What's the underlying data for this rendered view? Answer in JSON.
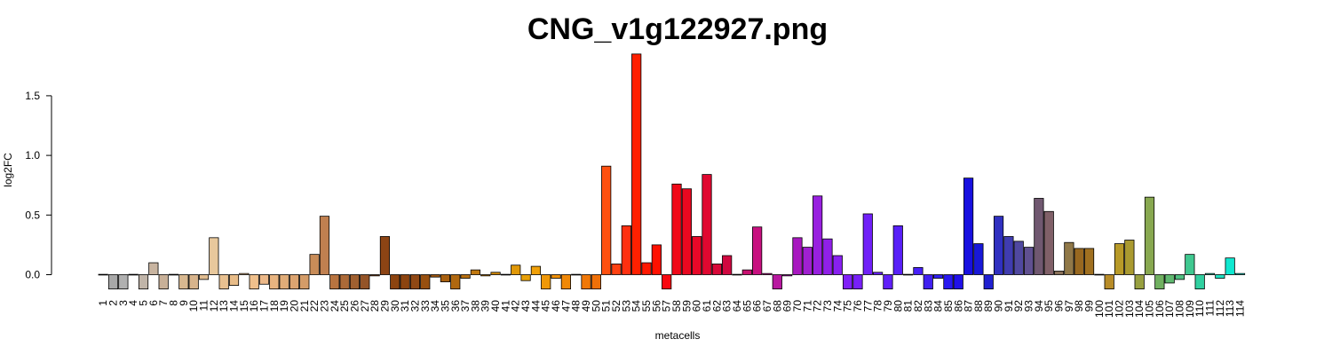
{
  "chart_data": {
    "type": "bar",
    "title": "CNG_v1g122927.png",
    "xlabel": "metacells",
    "ylabel": "log2FC",
    "ylim": [
      -0.13,
      1.9
    ],
    "yticks": [
      0.0,
      0.5,
      1.0,
      1.5
    ],
    "ytick_labels": [
      "0.0",
      "0.5",
      "1.0",
      "1.5"
    ],
    "categories": [
      "1",
      "2",
      "3",
      "4",
      "5",
      "6",
      "7",
      "8",
      "9",
      "10",
      "11",
      "12",
      "13",
      "14",
      "15",
      "16",
      "17",
      "18",
      "19",
      "20",
      "21",
      "22",
      "23",
      "24",
      "25",
      "26",
      "27",
      "28",
      "29",
      "30",
      "31",
      "32",
      "33",
      "34",
      "35",
      "36",
      "37",
      "38",
      "39",
      "40",
      "41",
      "42",
      "43",
      "44",
      "45",
      "46",
      "47",
      "48",
      "49",
      "50",
      "51",
      "52",
      "53",
      "54",
      "55",
      "56",
      "57",
      "58",
      "59",
      "60",
      "61",
      "62",
      "63",
      "64",
      "65",
      "66",
      "67",
      "68",
      "69",
      "70",
      "71",
      "72",
      "73",
      "74",
      "75",
      "76",
      "77",
      "78",
      "79",
      "80",
      "81",
      "82",
      "83",
      "84",
      "85",
      "86",
      "87",
      "88",
      "89",
      "90",
      "91",
      "92",
      "93",
      "94",
      "95",
      "96",
      "97",
      "98",
      "99",
      "100",
      "101",
      "102",
      "103",
      "104",
      "105",
      "106",
      "107",
      "108",
      "109",
      "110",
      "111",
      "112",
      "113",
      "114"
    ],
    "values": [
      0.0,
      -0.12,
      -0.12,
      0.0,
      -0.12,
      0.1,
      -0.12,
      0.0,
      -0.12,
      -0.12,
      -0.04,
      0.31,
      -0.12,
      -0.09,
      0.01,
      -0.12,
      -0.08,
      -0.12,
      -0.12,
      -0.12,
      -0.12,
      0.17,
      0.49,
      -0.12,
      -0.12,
      -0.12,
      -0.12,
      -0.01,
      0.32,
      -0.12,
      -0.12,
      -0.12,
      -0.12,
      -0.02,
      -0.06,
      -0.12,
      -0.03,
      0.04,
      -0.01,
      0.02,
      0.0,
      0.08,
      -0.05,
      0.07,
      -0.12,
      -0.03,
      -0.12,
      0.0,
      -0.12,
      -0.12,
      0.91,
      0.09,
      0.41,
      1.85,
      0.1,
      0.25,
      -0.12,
      0.76,
      0.72,
      0.32,
      0.84,
      0.09,
      0.16,
      0.0,
      0.04,
      0.4,
      0.01,
      -0.12,
      -0.01,
      0.31,
      0.23,
      0.66,
      0.3,
      0.16,
      -0.12,
      -0.12,
      0.51,
      0.02,
      -0.12,
      0.41,
      0.0,
      0.06,
      -0.12,
      -0.03,
      -0.12,
      -0.12,
      0.81,
      0.26,
      -0.12,
      0.49,
      0.32,
      0.28,
      0.23,
      0.64,
      0.53,
      0.03,
      0.27,
      0.22,
      0.22,
      0.0,
      -0.12,
      0.26,
      0.29,
      -0.12,
      0.65,
      -0.12,
      -0.07,
      -0.04,
      0.17,
      -0.12,
      0.01,
      -0.03,
      0.14,
      0.01
    ],
    "colors": [
      "#a0a0a0",
      "#a8a8a8",
      "#b0b0b0",
      "#b8b0a8",
      "#c0b4a8",
      "#c8b4a0",
      "#c8b098",
      "#d0b090",
      "#d8b890",
      "#d8b48c",
      "#e0bc90",
      "#e8c89c",
      "#e8c090",
      "#e8bc88",
      "#f0c490",
      "#f0c08c",
      "#ecb888",
      "#e8b480",
      "#e0ac78",
      "#dca470",
      "#d49c68",
      "#c88c58",
      "#c08050",
      "#b87440",
      "#ac6a38",
      "#a06030",
      "#945428",
      "#884a20",
      "#8c4414",
      "#8c4410",
      "#8c4410",
      "#904814",
      "#985010",
      "#a05810",
      "#a86010",
      "#b06810",
      "#b87010",
      "#c07810",
      "#c88008",
      "#d08808",
      "#d89008",
      "#e09808",
      "#e8a008",
      "#f0a008",
      "#f09808",
      "#f09008",
      "#f08808",
      "#f08008",
      "#f07808",
      "#f07008",
      "#ff5010",
      "#ff4010",
      "#ff3010",
      "#ff2000",
      "#ff1800",
      "#ff1000",
      "#f80810",
      "#f00818",
      "#e80820",
      "#e80828",
      "#e00830",
      "#d80838",
      "#d00840",
      "#c80c48",
      "#c81070",
      "#c81080",
      "#c01890",
      "#b818a0",
      "#b018b0",
      "#a818c0",
      "#a020d0",
      "#9820e0",
      "#9020e8",
      "#8820f0",
      "#8020f8",
      "#7820f8",
      "#7020f8",
      "#6820f8",
      "#6020f8",
      "#5820f8",
      "#5020f8",
      "#4820f8",
      "#4020f0",
      "#3020f0",
      "#2818f0",
      "#2010e8",
      "#1810e0",
      "#1818d8",
      "#2020d0",
      "#3030c0",
      "#403cb0",
      "#5048a0",
      "#605090",
      "#705870",
      "#806068",
      "#887058",
      "#907848",
      "#986820",
      "#a07020",
      "#b08030",
      "#b88c28",
      "#b89a28",
      "#aa9a30",
      "#98a040",
      "#88a850",
      "#70b060",
      "#60b870",
      "#50c080",
      "#40c890",
      "#30d0a0",
      "#30d8b0",
      "#20e0c0",
      "#10e8d0",
      "#10f0e0"
    ]
  }
}
